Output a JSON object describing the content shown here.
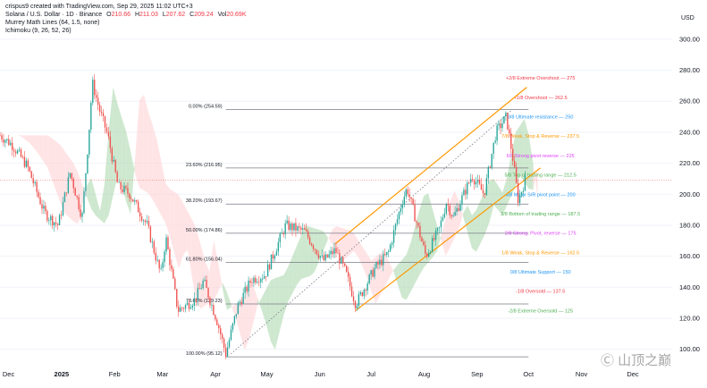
{
  "header": {
    "created_by": "crispus9 created with TradingView.com, Sep 29, 2025 11:02 UTC+3",
    "symbol": "Solana / U.S. Dollar · 1D · Binance",
    "ohlc": [
      {
        "label": "O",
        "value": "210.66"
      },
      {
        "label": "H",
        "value": "211.03"
      },
      {
        "label": "L",
        "value": "207.62"
      },
      {
        "label": "C",
        "value": "209.24"
      }
    ],
    "volume_label": "Vol",
    "volume_value": "20.69K",
    "indicator_1": "Murrey Math Lines (64, 1.5, none)",
    "indicator_2": "Ichimoku (9, 26, 52, 26)"
  },
  "currency_label": "USD",
  "watermark": "Ⓒ 山顶之巅",
  "chart_data": {
    "type": "candlestick",
    "y_axis": {
      "ticks": [
        100,
        120,
        140,
        160,
        180,
        200,
        220,
        240,
        260,
        280,
        300
      ],
      "ylim": [
        90,
        308
      ]
    },
    "x_axis": {
      "ticks": [
        "Dec",
        "2025",
        "Feb",
        "Mar",
        "Apr",
        "May",
        "Jun",
        "Jul",
        "Aug",
        "Sep",
        "Oct",
        "Nov",
        "Dec"
      ]
    },
    "last_price": 209.24,
    "price_path": [
      {
        "date": "2024-11-26",
        "price": 238
      },
      {
        "date": "2024-12-03",
        "price": 232
      },
      {
        "date": "2024-12-12",
        "price": 218
      },
      {
        "date": "2024-12-22",
        "price": 188
      },
      {
        "date": "2024-12-30",
        "price": 180
      },
      {
        "date": "2025-01-06",
        "price": 214
      },
      {
        "date": "2025-01-13",
        "price": 185
      },
      {
        "date": "2025-01-17",
        "price": 240
      },
      {
        "date": "2025-01-19",
        "price": 272
      },
      {
        "date": "2025-01-23",
        "price": 255
      },
      {
        "date": "2025-01-28",
        "price": 238
      },
      {
        "date": "2025-02-03",
        "price": 205
      },
      {
        "date": "2025-02-10",
        "price": 200
      },
      {
        "date": "2025-02-20",
        "price": 180
      },
      {
        "date": "2025-02-28",
        "price": 148
      },
      {
        "date": "2025-03-03",
        "price": 172
      },
      {
        "date": "2025-03-10",
        "price": 125
      },
      {
        "date": "2025-03-20",
        "price": 132
      },
      {
        "date": "2025-03-25",
        "price": 144
      },
      {
        "date": "2025-04-02",
        "price": 118
      },
      {
        "date": "2025-04-07",
        "price": 97
      },
      {
        "date": "2025-04-14",
        "price": 128
      },
      {
        "date": "2025-04-22",
        "price": 145
      },
      {
        "date": "2025-04-30",
        "price": 148
      },
      {
        "date": "2025-05-12",
        "price": 180
      },
      {
        "date": "2025-05-23",
        "price": 176
      },
      {
        "date": "2025-06-03",
        "price": 157
      },
      {
        "date": "2025-06-10",
        "price": 164
      },
      {
        "date": "2025-06-16",
        "price": 150
      },
      {
        "date": "2025-06-22",
        "price": 129
      },
      {
        "date": "2025-07-03",
        "price": 152
      },
      {
        "date": "2025-07-11",
        "price": 162
      },
      {
        "date": "2025-07-19",
        "price": 195
      },
      {
        "date": "2025-07-22",
        "price": 204
      },
      {
        "date": "2025-08-02",
        "price": 160
      },
      {
        "date": "2025-08-10",
        "price": 178
      },
      {
        "date": "2025-08-14",
        "price": 195
      },
      {
        "date": "2025-08-18",
        "price": 185
      },
      {
        "date": "2025-08-29",
        "price": 212
      },
      {
        "date": "2025-09-05",
        "price": 200
      },
      {
        "date": "2025-09-12",
        "price": 240
      },
      {
        "date": "2025-09-18",
        "price": 250
      },
      {
        "date": "2025-09-22",
        "price": 222
      },
      {
        "date": "2025-09-25",
        "price": 196
      },
      {
        "date": "2025-09-29",
        "price": 209
      }
    ],
    "fibonacci": [
      {
        "label": "0.00% (254.59)",
        "price": 254.59
      },
      {
        "label": "23.60% (216.95)",
        "price": 216.95
      },
      {
        "label": "38.20% (193.67)",
        "price": 193.67
      },
      {
        "label": "50.00% (174.86)",
        "price": 174.86
      },
      {
        "label": "61.80% (156.04)",
        "price": 156.04
      },
      {
        "label": "78.60% (129.23)",
        "price": 129.23
      },
      {
        "label": "100.00% (95.12)",
        "price": 95.12
      }
    ],
    "murrey_math": [
      {
        "label": "+2/8 Extreme Overshoot — 275",
        "price": 275,
        "color": "#f23645"
      },
      {
        "label": "+1/8 Overshoot — 262.5",
        "price": 262.5,
        "color": "#f23645"
      },
      {
        "label": "8/8 Ultimate resistance — 250",
        "price": 250,
        "color": "#2196f3"
      },
      {
        "label": "7/8 Weak, Stop & Reverse — 237.5",
        "price": 237.5,
        "color": "#ff9800"
      },
      {
        "label": "6/8 Strong pivot reverse — 225",
        "price": 225,
        "color": "#e040fb"
      },
      {
        "label": "5/8 Top of trading range — 212.5",
        "price": 212.5,
        "color": "#4caf50"
      },
      {
        "label": "4/8 Major S/R pivot point — 200",
        "price": 200,
        "color": "#2196f3"
      },
      {
        "label": "3/8 Bottom of trading range — 187.5",
        "price": 187.5,
        "color": "#4caf50"
      },
      {
        "label": "2/8 Strong, Pivot, reverse — 175",
        "price": 175,
        "color": "#e040fb"
      },
      {
        "label": "1/8 Weak, Stop & Reverse — 162.5",
        "price": 162.5,
        "color": "#ff9800"
      },
      {
        "label": "0/8 Ultimate Support — 150",
        "price": 150,
        "color": "#2196f3"
      },
      {
        "label": "-1/8 Oversold — 137.5",
        "price": 137.5,
        "color": "#f23645"
      },
      {
        "label": "-2/8 Extreme Oversold — 125",
        "price": 125,
        "color": "#4caf50"
      }
    ],
    "channel": {
      "color": "#ff9800",
      "upper": [
        {
          "date": "2025-06-10",
          "price": 168
        },
        {
          "date": "2025-09-30",
          "price": 269
        }
      ],
      "lower": [
        {
          "date": "2025-06-22",
          "price": 125
        },
        {
          "date": "2025-10-08",
          "price": 217
        }
      ],
      "dotted": [
        {
          "date": "2025-04-10",
          "price": 97
        },
        {
          "date": "2025-09-21",
          "price": 254
        }
      ]
    },
    "colors": {
      "up": "#26a69a",
      "down": "#ef5350",
      "fib": "#787b86",
      "last_price": "#ef5350",
      "cloud_bull": "#a5d6a7",
      "cloud_bear": "#ffcdd2"
    }
  }
}
